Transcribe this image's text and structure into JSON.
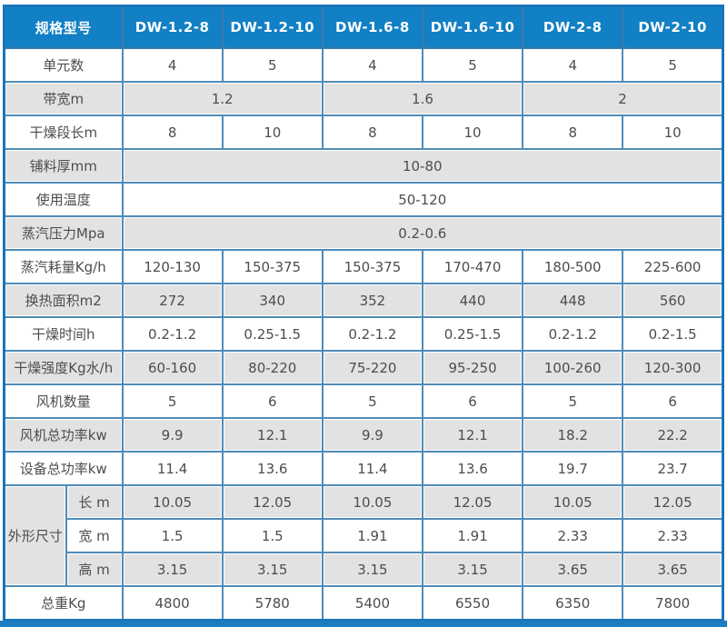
{
  "colors": {
    "header_bg": "#1280c4",
    "header_text": "#fefefe",
    "outer_border": "#1a75bb",
    "cell_border": "#4f8cb8",
    "row_gray_bg": "#e2e2e2",
    "row_white_bg": "#ffffff",
    "body_text": "#4d4d4d",
    "bottom_bar": "#1c7cc0"
  },
  "table": {
    "header": {
      "label": "规格型号",
      "models": [
        "DW-1.2-8",
        "DW-1.2-10",
        "DW-1.6-8",
        "DW-1.6-10",
        "DW-2-8",
        "DW-2-10"
      ]
    },
    "rows": [
      {
        "label": "单元数",
        "shade": "white",
        "cells": [
          {
            "text": "4"
          },
          {
            "text": "5"
          },
          {
            "text": "4"
          },
          {
            "text": "5"
          },
          {
            "text": "4"
          },
          {
            "text": "5"
          }
        ]
      },
      {
        "label": "带宽m",
        "shade": "gray",
        "cells": [
          {
            "text": "1.2",
            "span": 2
          },
          {
            "text": "1.6",
            "span": 2
          },
          {
            "text": "2",
            "span": 2
          }
        ]
      },
      {
        "label": "干燥段长m",
        "shade": "white",
        "cells": [
          {
            "text": "8"
          },
          {
            "text": "10"
          },
          {
            "text": "8"
          },
          {
            "text": "10"
          },
          {
            "text": "8"
          },
          {
            "text": "10"
          }
        ]
      },
      {
        "label": "铺料厚mm",
        "shade": "gray",
        "cells": [
          {
            "text": "10-80",
            "span": 6
          }
        ]
      },
      {
        "label": "使用温度",
        "shade": "white",
        "cells": [
          {
            "text": "50-120",
            "span": 6
          }
        ]
      },
      {
        "label": "蒸汽压力Mpa",
        "shade": "gray",
        "cells": [
          {
            "text": "0.2-0.6",
            "span": 6
          }
        ]
      },
      {
        "label": "蒸汽耗量Kg/h",
        "shade": "white",
        "cells": [
          {
            "text": "120-130"
          },
          {
            "text": "150-375"
          },
          {
            "text": "150-375"
          },
          {
            "text": "170-470"
          },
          {
            "text": "180-500"
          },
          {
            "text": "225-600"
          }
        ]
      },
      {
        "label": "换热面积m2",
        "shade": "gray",
        "cells": [
          {
            "text": "272"
          },
          {
            "text": "340"
          },
          {
            "text": "352"
          },
          {
            "text": "440"
          },
          {
            "text": "448"
          },
          {
            "text": "560"
          }
        ]
      },
      {
        "label": "干燥时间h",
        "shade": "white",
        "cells": [
          {
            "text": "0.2-1.2"
          },
          {
            "text": "0.25-1.5"
          },
          {
            "text": "0.2-1.2"
          },
          {
            "text": "0.25-1.5"
          },
          {
            "text": "0.2-1.2"
          },
          {
            "text": "0.2-1.5"
          }
        ]
      },
      {
        "label": "干燥强度Kg水/h",
        "shade": "gray",
        "cells": [
          {
            "text": "60-160"
          },
          {
            "text": "80-220"
          },
          {
            "text": "75-220"
          },
          {
            "text": "95-250"
          },
          {
            "text": "100-260"
          },
          {
            "text": "120-300"
          }
        ]
      },
      {
        "label": "风机数量",
        "shade": "white",
        "cells": [
          {
            "text": "5"
          },
          {
            "text": "6"
          },
          {
            "text": "5"
          },
          {
            "text": "6"
          },
          {
            "text": "5"
          },
          {
            "text": "6"
          }
        ]
      },
      {
        "label": "风机总功率kw",
        "shade": "gray",
        "cells": [
          {
            "text": "9.9"
          },
          {
            "text": "12.1"
          },
          {
            "text": "9.9"
          },
          {
            "text": "12.1"
          },
          {
            "text": "18.2"
          },
          {
            "text": "22.2"
          }
        ]
      },
      {
        "label": "设备总功率kw",
        "shade": "white",
        "cells": [
          {
            "text": "11.4"
          },
          {
            "text": "13.6"
          },
          {
            "text": "11.4"
          },
          {
            "text": "13.6"
          },
          {
            "text": "19.7"
          },
          {
            "text": "23.7"
          }
        ]
      },
      {
        "group_label": "外形尺寸",
        "group_rowspan": 3,
        "sublabel": "长 m",
        "shade": "gray",
        "cells": [
          {
            "text": "10.05"
          },
          {
            "text": "12.05"
          },
          {
            "text": "10.05"
          },
          {
            "text": "12.05"
          },
          {
            "text": "10.05"
          },
          {
            "text": "12.05"
          }
        ]
      },
      {
        "sublabel": "宽 m",
        "shade": "white",
        "cells": [
          {
            "text": "1.5"
          },
          {
            "text": "1.5"
          },
          {
            "text": "1.91"
          },
          {
            "text": "1.91"
          },
          {
            "text": "2.33"
          },
          {
            "text": "2.33"
          }
        ]
      },
      {
        "sublabel": "高 m",
        "shade": "gray",
        "cells": [
          {
            "text": "3.15"
          },
          {
            "text": "3.15"
          },
          {
            "text": "3.15"
          },
          {
            "text": "3.15"
          },
          {
            "text": "3.65"
          },
          {
            "text": "3.65"
          }
        ]
      },
      {
        "label": "总重Kg",
        "shade": "white",
        "cells": [
          {
            "text": "4800"
          },
          {
            "text": "5780"
          },
          {
            "text": "5400"
          },
          {
            "text": "6550"
          },
          {
            "text": "6350"
          },
          {
            "text": "7800"
          }
        ]
      }
    ]
  }
}
